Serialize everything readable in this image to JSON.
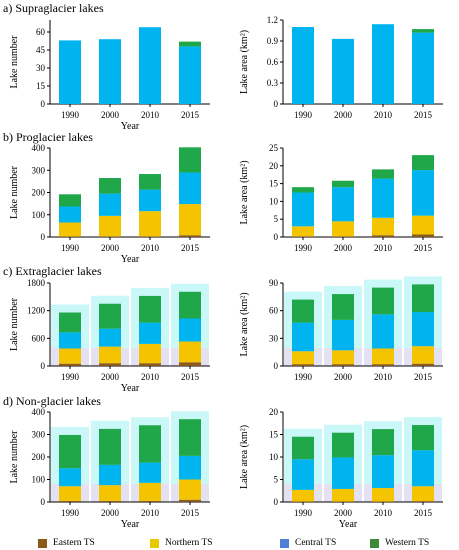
{
  "colors": {
    "eastern": "#8b5a1a",
    "northern": "#f5c400",
    "central": "#00b4f0",
    "western": "#1fa74a",
    "legend_eastern": "#8b5a1a",
    "legend_northern": "#e8c800",
    "legend_central": "#4f7fd6",
    "legend_western": "#3a8a3a",
    "halo_central": "#b8f4f4",
    "halo_eastern": "#f9d2ee"
  },
  "legend": {
    "eastern": "Eastern TS",
    "northern": "Northern TS",
    "central": "Central TS",
    "western": "Western TS"
  },
  "chart_data": [
    {
      "type": "bar",
      "stacked": true,
      "panel_title": "a) Supraglacier lakes",
      "title": "",
      "xlabel": "Year",
      "ylabel": "Lake number",
      "categories": [
        "1990",
        "2000",
        "2010",
        "2015"
      ],
      "ylim": [
        0,
        70
      ],
      "yticks": [
        0,
        15,
        30,
        45,
        60
      ],
      "ytick_labels": [
        "0",
        "15",
        "30",
        "45",
        "60"
      ],
      "grid": false,
      "series": [
        {
          "key": "eastern",
          "values": [
            0,
            0,
            0,
            0
          ]
        },
        {
          "key": "northern",
          "values": [
            0,
            0,
            0,
            0
          ]
        },
        {
          "key": "central",
          "values": [
            53,
            54,
            64,
            48
          ]
        },
        {
          "key": "western",
          "values": [
            0,
            0,
            0,
            4
          ]
        }
      ]
    },
    {
      "type": "bar",
      "stacked": true,
      "title": "",
      "xlabel": "",
      "ylabel": "Lake area (km²)",
      "categories": [
        "1990",
        "2000",
        "2010",
        "2015"
      ],
      "ylim": [
        0,
        1.2
      ],
      "yticks": [
        0,
        0.3,
        0.6,
        0.9,
        1.2
      ],
      "ytick_labels": [
        "0",
        "0.3",
        "0.6",
        "0.9",
        "1.2"
      ],
      "grid": false,
      "series": [
        {
          "key": "eastern",
          "values": [
            0,
            0,
            0,
            0
          ]
        },
        {
          "key": "northern",
          "values": [
            0,
            0,
            0,
            0
          ]
        },
        {
          "key": "central",
          "values": [
            1.1,
            0.93,
            1.14,
            1.02
          ]
        },
        {
          "key": "western",
          "values": [
            0,
            0,
            0,
            0.05
          ]
        }
      ]
    },
    {
      "type": "bar",
      "stacked": true,
      "panel_title": "b) Proglacier lakes",
      "title": "",
      "xlabel": "Year",
      "ylabel": "Lake number",
      "categories": [
        "1990",
        "2000",
        "2010",
        "2015"
      ],
      "ylim": [
        0,
        400
      ],
      "yticks": [
        0,
        100,
        200,
        300,
        400
      ],
      "ytick_labels": [
        "0",
        "100",
        "200",
        "300",
        "400"
      ],
      "grid": false,
      "series": [
        {
          "key": "eastern",
          "values": [
            2,
            3,
            3,
            8
          ]
        },
        {
          "key": "northern",
          "values": [
            63,
            92,
            113,
            140
          ]
        },
        {
          "key": "central",
          "values": [
            72,
            100,
            97,
            142
          ]
        },
        {
          "key": "western",
          "values": [
            55,
            70,
            70,
            113
          ]
        }
      ]
    },
    {
      "type": "bar",
      "stacked": true,
      "title": "",
      "xlabel": "",
      "ylabel": "Lake area (km²)",
      "categories": [
        "1990",
        "2000",
        "2010",
        "2015"
      ],
      "ylim": [
        0,
        25
      ],
      "yticks": [
        0,
        5,
        10,
        15,
        20,
        25
      ],
      "ytick_labels": [
        "0",
        "5",
        "10",
        "15",
        "20",
        "25"
      ],
      "grid": false,
      "series": [
        {
          "key": "eastern",
          "values": [
            0.2,
            0.2,
            0.5,
            0.7
          ]
        },
        {
          "key": "northern",
          "values": [
            2.8,
            4.2,
            4.9,
            5.3
          ]
        },
        {
          "key": "central",
          "values": [
            9.5,
            9.6,
            11.0,
            12.8
          ]
        },
        {
          "key": "western",
          "values": [
            1.5,
            1.8,
            2.6,
            4.2
          ]
        }
      ]
    },
    {
      "type": "bar",
      "stacked": true,
      "panel_title": "c) Extraglacier lakes",
      "title": "",
      "xlabel": "Year",
      "ylabel": "Lake number",
      "categories": [
        "1990",
        "2000",
        "2010",
        "2015"
      ],
      "ylim": [
        0,
        1800
      ],
      "yticks": [
        0,
        600,
        1200,
        1800
      ],
      "ytick_labels": [
        "0",
        "600",
        "1200",
        "1800"
      ],
      "grid": false,
      "series": [
        {
          "key": "eastern",
          "values": [
            50,
            60,
            60,
            80
          ]
        },
        {
          "key": "northern",
          "values": [
            330,
            360,
            420,
            450
          ]
        },
        {
          "key": "central",
          "values": [
            350,
            390,
            460,
            500
          ]
        },
        {
          "key": "western",
          "values": [
            430,
            540,
            580,
            580
          ]
        }
      ]
    },
    {
      "type": "bar",
      "stacked": true,
      "title": "",
      "xlabel": "",
      "ylabel": "Lake area (km²)",
      "categories": [
        "1990",
        "2000",
        "2010",
        "2015"
      ],
      "ylim": [
        0,
        90
      ],
      "yticks": [
        0,
        30,
        60,
        90
      ],
      "ytick_labels": [
        "0",
        "30",
        "60",
        "90"
      ],
      "grid": false,
      "series": [
        {
          "key": "eastern",
          "values": [
            2,
            2,
            2,
            2.5
          ]
        },
        {
          "key": "northern",
          "values": [
            14,
            15,
            17,
            19
          ]
        },
        {
          "key": "central",
          "values": [
            31,
            33,
            37,
            37
          ]
        },
        {
          "key": "western",
          "values": [
            25,
            28,
            29,
            30
          ]
        }
      ]
    },
    {
      "type": "bar",
      "stacked": true,
      "panel_title": "d) Non-glacier lakes",
      "title": "",
      "xlabel": "Year",
      "ylabel": "Lake number",
      "categories": [
        "1990",
        "2000",
        "2010",
        "2015"
      ],
      "ylim": [
        0,
        400
      ],
      "yticks": [
        0,
        100,
        200,
        300,
        400
      ],
      "ytick_labels": [
        "0",
        "100",
        "200",
        "300",
        "400"
      ],
      "grid": false,
      "series": [
        {
          "key": "eastern",
          "values": [
            5,
            5,
            5,
            10
          ]
        },
        {
          "key": "northern",
          "values": [
            65,
            70,
            80,
            90
          ]
        },
        {
          "key": "central",
          "values": [
            80,
            90,
            90,
            105
          ]
        },
        {
          "key": "western",
          "values": [
            148,
            160,
            166,
            163
          ]
        }
      ]
    },
    {
      "type": "bar",
      "stacked": true,
      "title": "",
      "xlabel": "Year",
      "ylabel": "Lake area (km²)",
      "categories": [
        "1990",
        "2000",
        "2010",
        "2015"
      ],
      "ylim": [
        0,
        20
      ],
      "yticks": [
        0,
        5,
        10,
        15,
        20
      ],
      "ytick_labels": [
        "0",
        "5",
        "10",
        "15",
        "20"
      ],
      "grid": false,
      "series": [
        {
          "key": "eastern",
          "values": [
            0.1,
            0.1,
            0.1,
            0.2
          ]
        },
        {
          "key": "northern",
          "values": [
            2.6,
            2.8,
            3.0,
            3.3
          ]
        },
        {
          "key": "central",
          "values": [
            6.8,
            7.0,
            7.3,
            8.0
          ]
        },
        {
          "key": "western",
          "values": [
            5.0,
            5.5,
            5.8,
            5.6
          ]
        }
      ]
    }
  ]
}
